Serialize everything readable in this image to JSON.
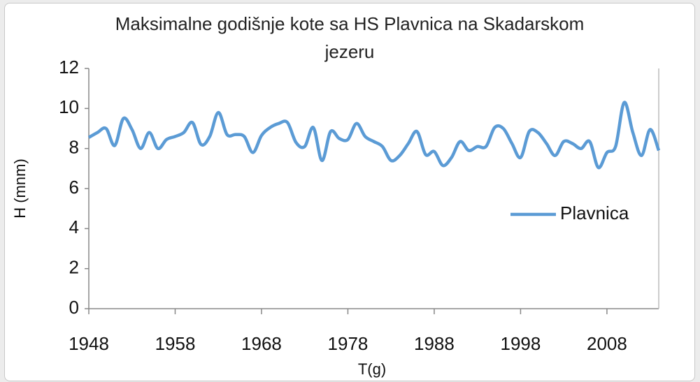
{
  "chart_data": {
    "type": "line",
    "title": "Maksimalne godišnje kote sa HS Plavnica na Skadarskom jezeru",
    "xlabel": "T(g)",
    "ylabel": "H (mnm)",
    "x": [
      1948,
      1949,
      1950,
      1951,
      1952,
      1953,
      1954,
      1955,
      1956,
      1957,
      1958,
      1959,
      1960,
      1961,
      1962,
      1963,
      1964,
      1965,
      1966,
      1967,
      1968,
      1969,
      1970,
      1971,
      1972,
      1973,
      1974,
      1975,
      1976,
      1977,
      1978,
      1979,
      1980,
      1981,
      1982,
      1983,
      1984,
      1985,
      1986,
      1987,
      1988,
      1989,
      1990,
      1991,
      1992,
      1993,
      1994,
      1995,
      1996,
      1997,
      1998,
      1999,
      2000,
      2001,
      2002,
      2003,
      2004,
      2005,
      2006,
      2007,
      2008,
      2009,
      2010,
      2011,
      2012,
      2013,
      2014
    ],
    "series": [
      {
        "name": "Plavnica",
        "color": "#5b9bd5",
        "values": [
          8.55,
          8.8,
          9.0,
          8.15,
          9.5,
          8.95,
          8.0,
          8.8,
          8.0,
          8.45,
          8.6,
          8.8,
          9.3,
          8.2,
          8.6,
          9.8,
          8.7,
          8.7,
          8.6,
          7.8,
          8.65,
          9.05,
          9.25,
          9.3,
          8.3,
          8.1,
          9.05,
          7.4,
          8.85,
          8.5,
          8.45,
          9.25,
          8.6,
          8.35,
          8.1,
          7.4,
          7.65,
          8.25,
          8.85,
          7.7,
          7.85,
          7.15,
          7.55,
          8.35,
          7.9,
          8.1,
          8.1,
          9.05,
          9.0,
          8.25,
          7.55,
          8.85,
          8.8,
          8.25,
          7.65,
          8.35,
          8.25,
          8.0,
          8.35,
          7.05,
          7.8,
          8.1,
          10.3,
          8.8,
          7.65,
          8.95,
          7.9
        ]
      }
    ],
    "xlim": [
      1948,
      2014
    ],
    "xticks": [
      1948,
      1958,
      1968,
      1978,
      1988,
      1998,
      2008
    ],
    "ylim": [
      0,
      12
    ],
    "yticks": [
      0,
      2,
      4,
      6,
      8,
      10,
      12
    ],
    "legend": "right"
  }
}
